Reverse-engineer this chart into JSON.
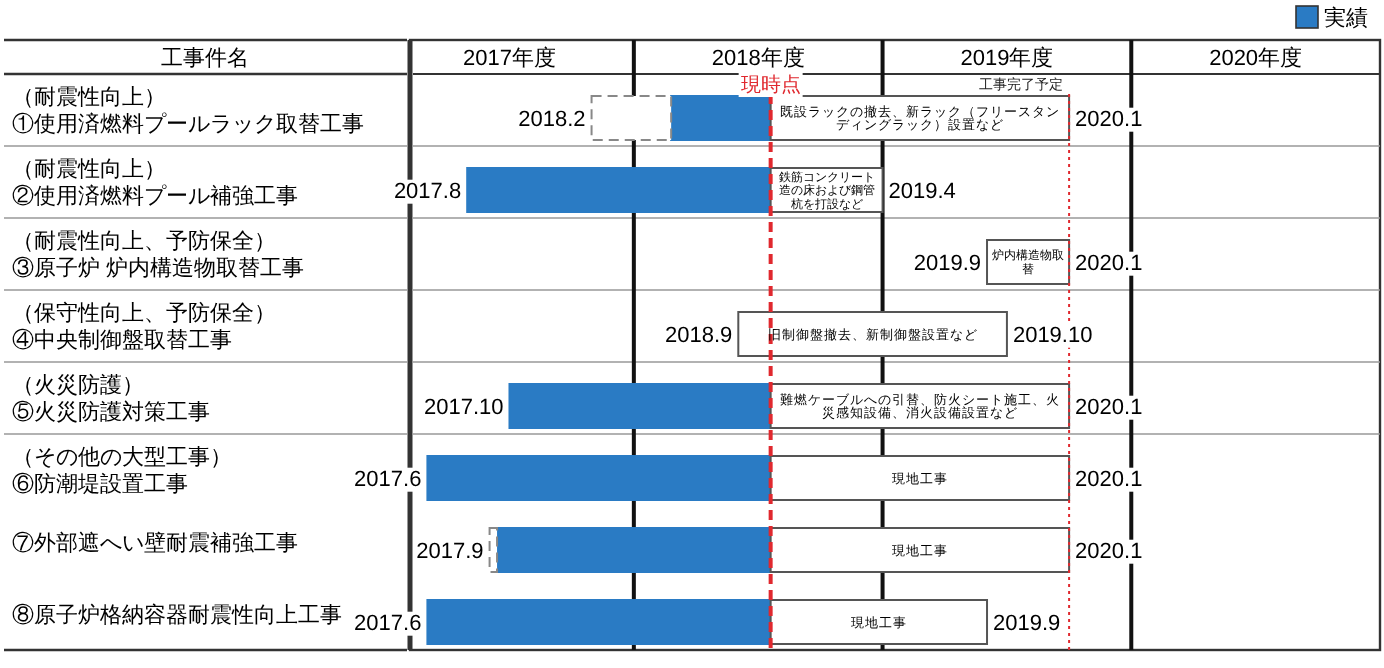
{
  "chart_data": {
    "type": "bar",
    "orientation": "horizontal",
    "ylabel": "工事件名",
    "categories": [
      "（耐震性向上）\n①使用済燃料プールラック取替工事",
      "（耐震性向上）\n②使用済燃料プール補強工事",
      "（耐震性向上、予防保全）\n③原子炉 炉内構造物取替工事",
      "（保守性向上、予防保全）\n④中央制御盤取替工事",
      "（火災防護）\n⑤火災防護対策工事",
      "（その他の大型工事）\n⑥防潮堤設置工事",
      "⑦外部遮へい壁耐震補強工事",
      "⑧原子炉格納容器耐震性向上工事"
    ],
    "series": [
      {
        "color": "#ffffff",
        "line_style": "dashed",
        "base": [
          2017.33,
          null,
          null,
          null,
          null,
          null,
          2016.92,
          null
        ],
        "values": [
          0.32,
          null,
          null,
          null,
          null,
          null,
          0.03,
          null
        ]
      },
      {
        "name": "実績",
        "color": "#2a7bc4",
        "base": [
          2017.65,
          2016.83,
          null,
          null,
          2017.0,
          2016.67,
          2016.95,
          2016.67
        ],
        "values": [
          0.4,
          1.22,
          null,
          null,
          1.05,
          1.38,
          1.1,
          1.38
        ]
      },
      {
        "color": "#ffffff",
        "base": [
          2018.05,
          2018.05,
          2018.92,
          2017.92,
          2018.05,
          2018.05,
          2018.05,
          2018.05
        ],
        "values": [
          1.2,
          0.45,
          0.33,
          1.08,
          1.2,
          1.2,
          1.2,
          0.87
        ]
      }
    ],
    "xlim": [
      2016.6,
      2020.5
    ],
    "xticks": [
      {
        "value": 2016.6,
        "label": null
      },
      {
        "value": 2017,
        "label": "2017年度"
      },
      {
        "value": 2017.5,
        "label": null
      },
      {
        "value": 2018,
        "label": "2018年度"
      },
      {
        "value": 2018.5,
        "label": null
      },
      {
        "value": 2019,
        "label": "2019年度"
      },
      {
        "value": 2019.5,
        "label": null
      },
      {
        "value": 2020,
        "label": "2020年度"
      }
    ],
    "grid": "x",
    "legend": "top right",
    "ref_lines": [
      {
        "axis": "x",
        "value": 2018.05,
        "label": "現時点",
        "color": "#e0282e",
        "line_style": "dashed"
      },
      {
        "axis": "x",
        "value": 2019.25,
        "label": "工事完了予定",
        "color": "#e0282e",
        "line_style": "dotted"
      }
    ],
    "annotations": [
      "2018.2",
      "既設ラックの撤去、新ラック（フリースタンディングラック）設置など",
      "2020.1",
      "2017.8",
      "鉄筋コンクリート造の床および鋼管杭を打設など",
      "2019.4",
      "2019.9",
      "炉内構造物取替",
      "2020.1",
      "2018.9",
      "旧制御盤撤去、新制御盤設置など",
      "2019.10",
      "2017.10",
      "難燃ケーブルへの引替、防火シート施工、火災感知設備、消火設備設置など",
      "2020.1",
      "2017.6",
      "現地工事",
      "2020.1",
      "2017.9",
      "現地工事",
      "2020.1",
      "2017.6",
      "現地工事",
      "2019.9"
    ]
  }
}
